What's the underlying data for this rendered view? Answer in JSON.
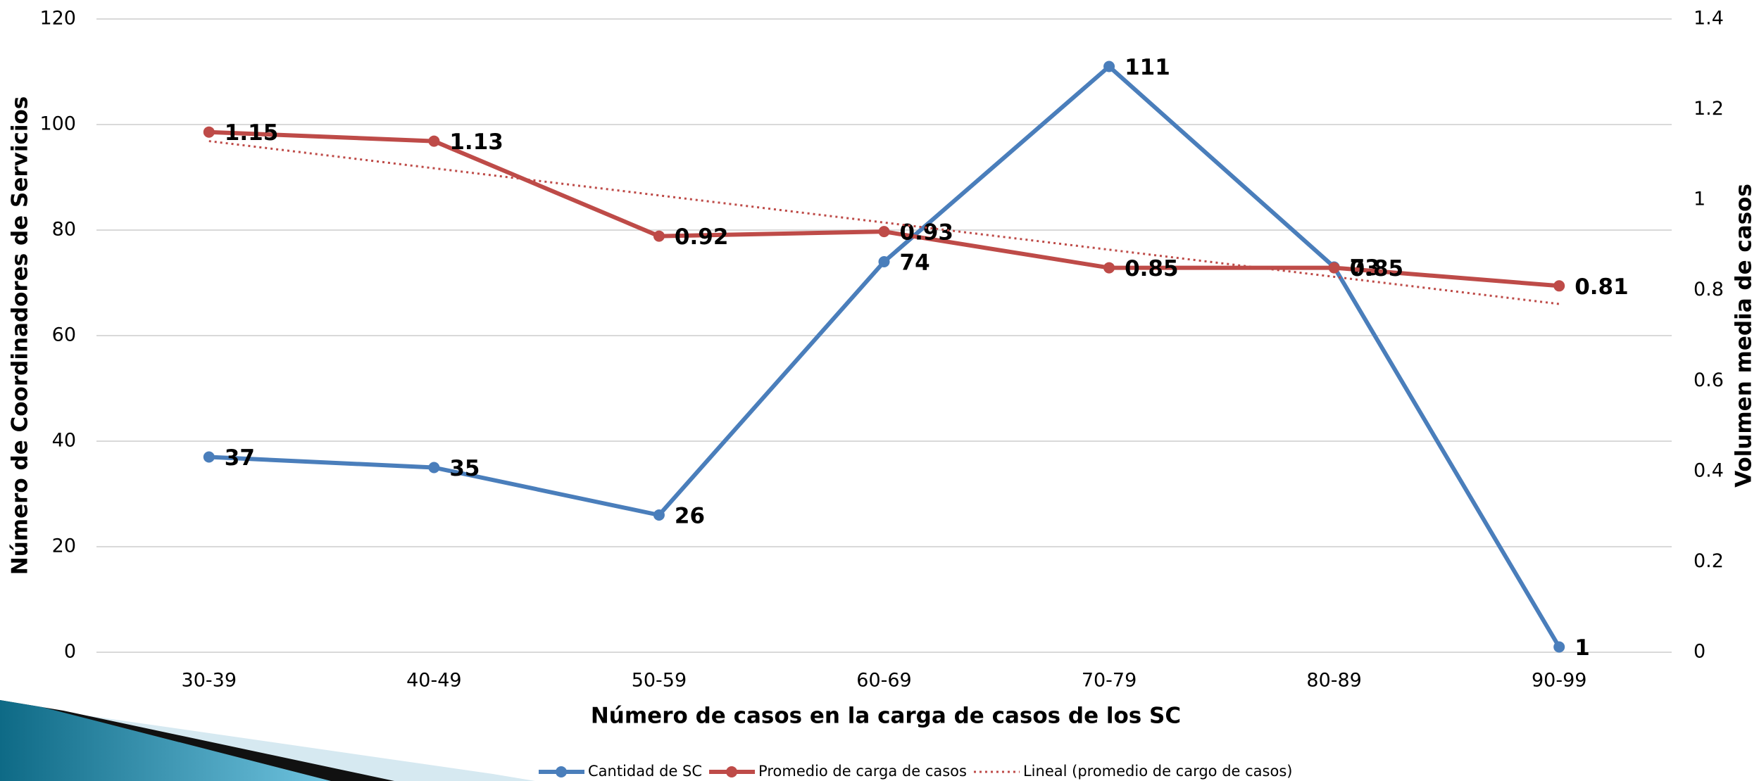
{
  "chart_data": {
    "type": "line",
    "x_label": "Número de casos en la carga de casos de los SC",
    "y_label": "Número de Coordinadores de Servicios",
    "y2_label": "Volumen media de casos",
    "categories": [
      "30-39",
      "40-49",
      "50-59",
      "60-69",
      "70-79",
      "80-89",
      "90-99"
    ],
    "series": [
      {
        "name": "Cantidad de SC",
        "color": "#4a7ebb",
        "values": [
          37,
          35,
          26,
          74,
          111,
          73,
          1
        ],
        "markers": true,
        "data_labels": true
      },
      {
        "name": "Promedio de carga de casos",
        "color": "#be4b48",
        "axis": "y2",
        "values": [
          1.15,
          1.13,
          0.92,
          0.93,
          0.85,
          0.85,
          0.81
        ],
        "markers": true,
        "data_labels": true
      },
      {
        "name": "Lineal (promedio de cargo de casos)",
        "color": "#be4b48",
        "axis": "y2",
        "values": [
          1.13,
          1.07,
          1.01,
          0.95,
          0.89,
          0.83,
          0.77
        ],
        "markers": false,
        "dotted": true,
        "data_labels": false
      }
    ],
    "ylim": [
      0,
      120
    ],
    "yticks": [
      0,
      20,
      40,
      60,
      80,
      100,
      120
    ],
    "y2lim": [
      0,
      1.4
    ],
    "y2ticks": [
      0,
      0.2,
      0.4,
      0.6,
      0.8,
      1,
      1.2,
      1.4
    ],
    "grid": true,
    "legend": "bottom"
  }
}
